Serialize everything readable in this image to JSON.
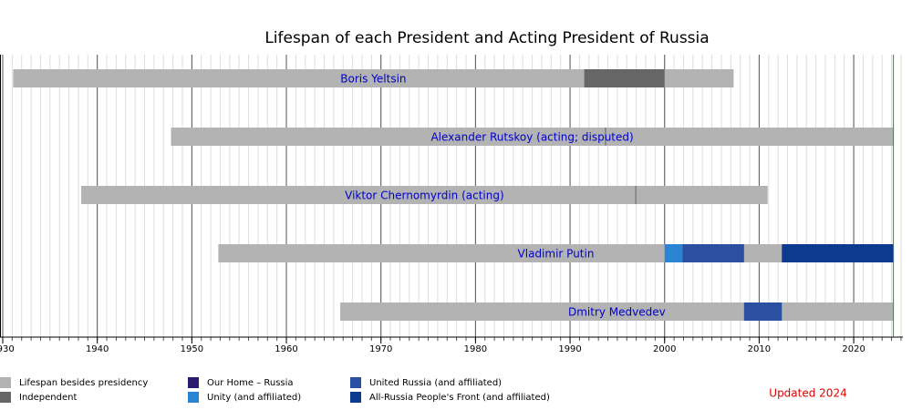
{
  "chart_data": {
    "type": "timeline",
    "title": "Lifespan of each President and Acting President of Russia",
    "xlim": [
      1930,
      2025.2
    ],
    "xticks": [
      1930,
      1940,
      1950,
      1960,
      1970,
      1980,
      1990,
      2000,
      2010,
      2020
    ],
    "minor_tick_step": 1,
    "grid": true,
    "now_line": 2024.2,
    "now_color": "#00aa00",
    "annotation": "Updated 2024",
    "annotation_color": "#e00000",
    "series": [
      {
        "name": "Lifespan besides presidency",
        "color": "#b3b3b3"
      },
      {
        "name": "Independent",
        "color": "#666666"
      },
      {
        "name": "Our Home – Russia",
        "color": "#2b1a6e"
      },
      {
        "name": "Unity (and affiliated)",
        "color": "#2a84d2"
      },
      {
        "name": "United Russia (and affiliated)",
        "color": "#2b50a2"
      },
      {
        "name": "All-Russia People's Front (and affiliated)",
        "color": "#0b3a8f"
      }
    ],
    "rows": [
      {
        "name": "Boris Yeltsin",
        "born": 1931.1,
        "died": 2007.3,
        "segments": [
          {
            "start": 1991.5,
            "end": 2000.0,
            "series": 1
          }
        ]
      },
      {
        "name": "Alexander Rutskoy (acting; disputed)",
        "born": 1947.8,
        "died": null,
        "segments": [
          {
            "start": 1993.7,
            "end": 1993.8,
            "series": 1
          }
        ]
      },
      {
        "name": "Viktor Chernomyrdin (acting)",
        "born": 1938.3,
        "died": 2010.9,
        "segments": [
          {
            "start": 1996.9,
            "end": 1997.0,
            "series": 1
          }
        ]
      },
      {
        "name": "Vladimir Putin",
        "born": 1952.8,
        "died": null,
        "segments": [
          {
            "start": 2000.0,
            "end": 2001.9,
            "series": 3
          },
          {
            "start": 2001.9,
            "end": 2008.4,
            "series": 4
          },
          {
            "start": 2012.4,
            "end": 2024.2,
            "series": 5
          }
        ]
      },
      {
        "name": "Dmitry Medvedev",
        "born": 1965.7,
        "died": null,
        "segments": [
          {
            "start": 2008.4,
            "end": 2012.4,
            "series": 4
          }
        ]
      }
    ]
  }
}
